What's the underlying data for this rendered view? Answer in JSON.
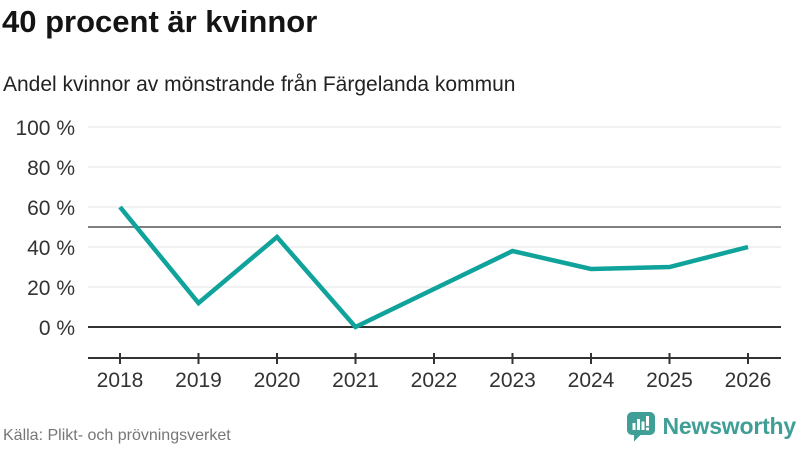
{
  "chart_data": {
    "type": "line",
    "title": "40 procent är kvinnor",
    "subtitle": "Andel kvinnor av mönstrande från Färgelanda kommun",
    "x": [
      "2018",
      "2019",
      "2020",
      "2021",
      "2022",
      "2023",
      "2024",
      "2025",
      "2026"
    ],
    "series": [
      {
        "name": "Andel kvinnor av mönstrande",
        "values": [
          60,
          12,
          45,
          0,
          19,
          38,
          29,
          30,
          40
        ]
      }
    ],
    "ylim": [
      0,
      100
    ],
    "yticks": [
      0,
      20,
      40,
      60,
      80,
      100
    ],
    "ytick_labels": [
      "0 %",
      "20 %",
      "40 %",
      "60 %",
      "80 %",
      "100 %"
    ],
    "reference_line_y": 50,
    "grid": true,
    "legend": "none",
    "ylabel": "",
    "xlabel": ""
  },
  "footer": {
    "source": "Källa: Plikt- och prövningsverket",
    "brand_name": "Newsworthy"
  },
  "colors": {
    "line": "#10a39b",
    "grid": "#e3e3e3",
    "axis": "#333333",
    "reference": "#7f7f7f",
    "axis_text": "#333333",
    "title_text": "#141414",
    "subtitle_text": "#222222",
    "source_text": "#767676",
    "brand_teal": "#3f9f97"
  }
}
